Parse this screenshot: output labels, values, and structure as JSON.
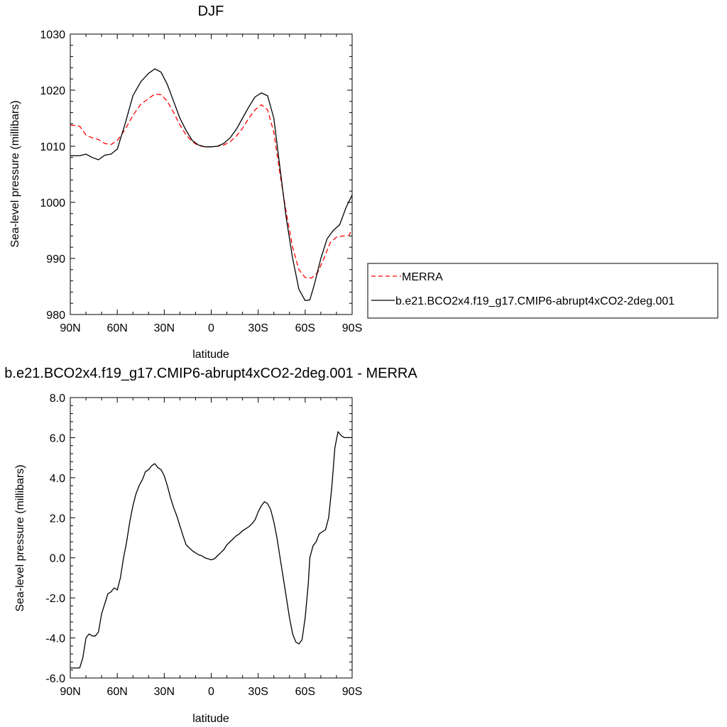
{
  "chart_data": [
    {
      "type": "line",
      "title": "DJF",
      "xlabel": "latitude",
      "ylabel": "Sea-level pressure (millibars)",
      "xlim": [
        90,
        -90
      ],
      "ylim": [
        980,
        1030
      ],
      "x_ticks": [
        90,
        60,
        30,
        0,
        -30,
        -60,
        -90
      ],
      "x_tick_labels": [
        "90N",
        "60N",
        "30N",
        "0",
        "30S",
        "60S",
        "90S"
      ],
      "y_ticks": [
        980,
        990,
        1000,
        1010,
        1020,
        1030
      ],
      "y_tick_labels": [
        "980",
        "990",
        "1000",
        "1010",
        "1020",
        "1030"
      ],
      "grid": false,
      "legend_position": "right, outside plot",
      "series": [
        {
          "name": "MERRA",
          "color": "#ff0000",
          "dash": "dashed",
          "x": [
            90,
            84,
            80,
            76,
            72,
            68,
            64,
            60,
            55,
            50,
            45,
            40,
            36,
            32,
            28,
            24,
            20,
            16,
            12,
            8,
            4,
            0,
            -4,
            -8,
            -12,
            -16,
            -20,
            -24,
            -28,
            -32,
            -36,
            -40,
            -44,
            -48,
            -52,
            -56,
            -60,
            -64,
            -68,
            -72,
            -76,
            -80,
            -84,
            -88,
            -90
          ],
          "y": [
            1013.8,
            1013.6,
            1012.0,
            1011.5,
            1011.2,
            1010.5,
            1010.3,
            1011.0,
            1013.0,
            1015.5,
            1017.5,
            1018.5,
            1019.3,
            1019.2,
            1018.0,
            1016.0,
            1013.8,
            1012.0,
            1010.8,
            1010.1,
            1009.9,
            1009.9,
            1010.0,
            1010.2,
            1010.8,
            1011.8,
            1013.2,
            1015.0,
            1016.5,
            1017.4,
            1016.5,
            1012.5,
            1005.0,
            998.0,
            992.0,
            988.0,
            986.6,
            986.5,
            987.5,
            990.0,
            992.8,
            993.8,
            994.0,
            994.1,
            995.3
          ]
        },
        {
          "name": "b.e21.BCO2x4.f19_g17.CMIP6-abrupt4xCO2-2deg.001",
          "color": "#000000",
          "dash": "solid",
          "x": [
            90,
            84,
            80,
            76,
            72,
            68,
            64,
            60,
            55,
            50,
            45,
            40,
            36,
            32,
            28,
            24,
            20,
            16,
            12,
            8,
            4,
            0,
            -4,
            -8,
            -12,
            -16,
            -20,
            -24,
            -28,
            -32,
            -36,
            -40,
            -44,
            -48,
            -52,
            -56,
            -60,
            -63,
            -66,
            -70,
            -74,
            -78,
            -82,
            -86,
            -90
          ],
          "y": [
            1008.3,
            1008.3,
            1008.6,
            1008.0,
            1007.6,
            1008.4,
            1008.6,
            1009.5,
            1014.0,
            1019.0,
            1021.5,
            1023.0,
            1023.8,
            1023.2,
            1021.0,
            1018.0,
            1015.0,
            1012.8,
            1011.0,
            1010.2,
            1009.9,
            1009.9,
            1010.0,
            1010.5,
            1011.5,
            1013.0,
            1015.0,
            1017.0,
            1018.8,
            1019.5,
            1019.0,
            1015.0,
            1006.0,
            997.0,
            990.0,
            984.5,
            982.5,
            982.6,
            985.5,
            990.0,
            993.5,
            995.0,
            996.0,
            999.0,
            1001.3
          ]
        }
      ]
    },
    {
      "type": "line",
      "title": "b.e21.BCO2x4.f19_g17.CMIP6-abrupt4xCO2-2deg.001 - MERRA",
      "xlabel": "latitude",
      "ylabel": "Sea-level pressure (millibars)",
      "xlim": [
        90,
        -90
      ],
      "ylim": [
        -6,
        8
      ],
      "x_ticks": [
        90,
        60,
        30,
        0,
        -30,
        -60,
        -90
      ],
      "x_tick_labels": [
        "90N",
        "60N",
        "30N",
        "0",
        "30S",
        "60S",
        "90S"
      ],
      "y_ticks": [
        -6,
        -4,
        -2,
        0,
        2,
        4,
        6,
        8
      ],
      "y_tick_labels": [
        "-6.0",
        "-4.0",
        "-2.0",
        "0.0",
        "2.0",
        "4.0",
        "6.0",
        "8.0"
      ],
      "grid": false,
      "series": [
        {
          "color": "#000000",
          "dash": "solid",
          "x": [
            90,
            84,
            82,
            80,
            78,
            76,
            74,
            72,
            70,
            68,
            66,
            64,
            62,
            60,
            58,
            56,
            54,
            52,
            50,
            48,
            46,
            44,
            42,
            40,
            38,
            36,
            34,
            32,
            30,
            28,
            26,
            24,
            22,
            20,
            18,
            16,
            14,
            12,
            10,
            8,
            6,
            4,
            2,
            0,
            -2,
            -4,
            -6,
            -8,
            -10,
            -12,
            -14,
            -16,
            -18,
            -20,
            -22,
            -24,
            -26,
            -28,
            -30,
            -32,
            -34,
            -36,
            -38,
            -40,
            -42,
            -44,
            -46,
            -48,
            -50,
            -52,
            -54,
            -56,
            -58,
            -60,
            -62,
            -63,
            -65,
            -67,
            -69,
            -71,
            -73,
            -75,
            -77,
            -79,
            -81,
            -83,
            -85,
            -87,
            -88,
            -90
          ],
          "y": [
            -5.5,
            -5.5,
            -5.0,
            -4.0,
            -3.8,
            -3.9,
            -3.9,
            -3.7,
            -2.8,
            -2.3,
            -1.8,
            -1.7,
            -1.5,
            -1.6,
            -1.0,
            0.0,
            0.8,
            1.8,
            2.6,
            3.2,
            3.6,
            3.9,
            4.3,
            4.4,
            4.6,
            4.7,
            4.5,
            4.4,
            4.1,
            3.6,
            3.0,
            2.5,
            2.1,
            1.6,
            1.1,
            0.65,
            0.5,
            0.35,
            0.25,
            0.15,
            0.1,
            0.0,
            -0.05,
            -0.1,
            -0.05,
            0.1,
            0.25,
            0.4,
            0.65,
            0.8,
            0.95,
            1.1,
            1.2,
            1.35,
            1.45,
            1.55,
            1.7,
            1.9,
            2.3,
            2.6,
            2.8,
            2.7,
            2.4,
            1.8,
            1.0,
            0.0,
            -1.0,
            -2.0,
            -3.0,
            -3.8,
            -4.2,
            -4.3,
            -4.1,
            -3.0,
            -1.3,
            0.0,
            0.6,
            0.8,
            1.2,
            1.3,
            1.4,
            2.0,
            3.5,
            5.5,
            6.3,
            6.1,
            6.0,
            6.0,
            6.0,
            6.0
          ]
        }
      ]
    }
  ]
}
